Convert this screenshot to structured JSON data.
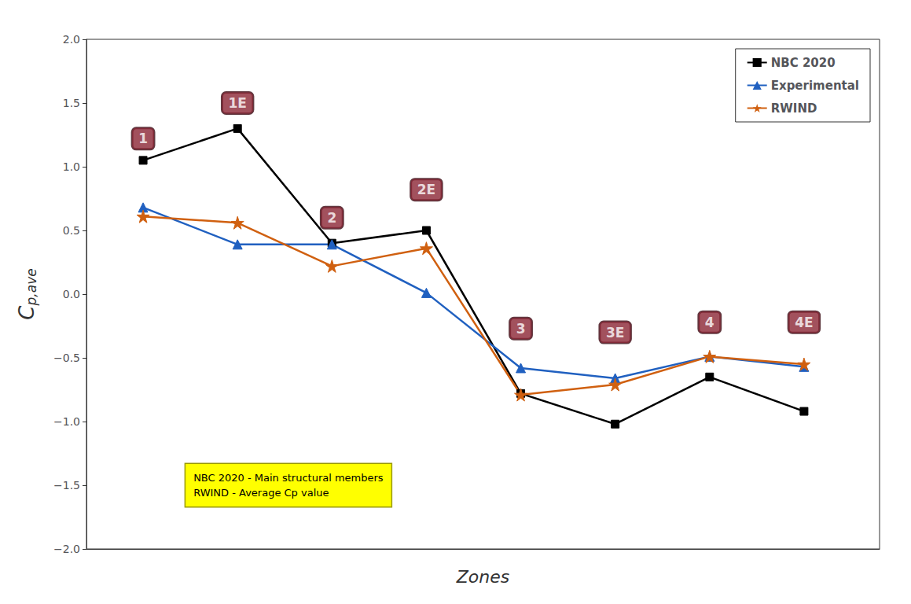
{
  "chart_data": {
    "type": "line",
    "xlabel": "Zones",
    "ylabel": "Cp,ave",
    "x": [
      1,
      2,
      3,
      4,
      5,
      6,
      7,
      8
    ],
    "series": [
      {
        "name": "NBC 2020",
        "color": "#000000",
        "marker": "square",
        "values": [
          1.05,
          1.3,
          0.4,
          0.5,
          -0.78,
          -1.02,
          -0.65,
          -0.92
        ]
      },
      {
        "name": "Experimental",
        "color": "#2060C0",
        "marker": "triangle",
        "values": [
          0.68,
          0.39,
          0.39,
          0.01,
          -0.58,
          -0.66,
          -0.49,
          -0.57
        ]
      },
      {
        "name": "RWIND",
        "color": "#D06010",
        "marker": "star",
        "values": [
          0.61,
          0.56,
          0.22,
          0.36,
          -0.79,
          -0.71,
          -0.49,
          -0.55
        ]
      }
    ],
    "xlim": [
      0.4,
      8.8
    ],
    "xticks": [],
    "ylim": [
      -2.0,
      2.0
    ],
    "yticks": [
      {
        "value": -2.0,
        "label": "−2.0"
      },
      {
        "value": -1.5,
        "label": "−1.5"
      },
      {
        "value": -1.0,
        "label": "−1.0"
      },
      {
        "value": -0.5,
        "label": "−0.5"
      },
      {
        "value": 0.0,
        "label": "0.0"
      },
      {
        "value": 0.5,
        "label": "0.5"
      },
      {
        "value": 1.0,
        "label": "1.0"
      },
      {
        "value": 1.5,
        "label": "1.5"
      },
      {
        "value": 2.0,
        "label": "2.0"
      }
    ],
    "tick_labels": "y",
    "grid": false,
    "legend": "upper right",
    "annotations": [
      {
        "text": "1",
        "x": 1,
        "y": 1.22,
        "color": "#8B2635"
      },
      {
        "text": "1E",
        "x": 2,
        "y": 1.5,
        "color": "#8B2635"
      },
      {
        "text": "2",
        "x": 3,
        "y": 0.6,
        "color": "#8B2635"
      },
      {
        "text": "2E",
        "x": 4,
        "y": 0.82,
        "color": "#8B2635"
      },
      {
        "text": "3",
        "x": 5,
        "y": -0.27,
        "color": "#8B2635"
      },
      {
        "text": "3E",
        "x": 6,
        "y": -0.3,
        "color": "#8B2635"
      },
      {
        "text": "4",
        "x": 7,
        "y": -0.22,
        "color": "#8B2635"
      },
      {
        "text": "4E",
        "x": 8,
        "y": -0.22,
        "color": "#8B2635"
      },
      {
        "text": "NBC 2020 - Main structural members\nRWIND - Average Cp value",
        "color": "#FFFF00"
      }
    ]
  }
}
